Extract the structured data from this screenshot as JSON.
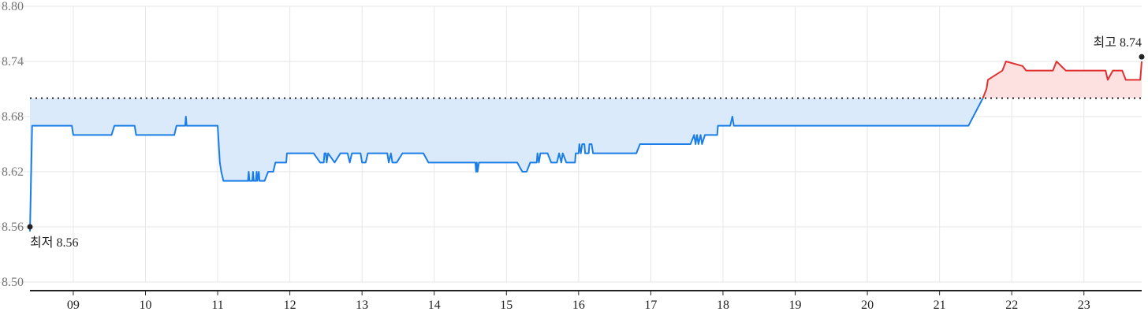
{
  "chart_data": {
    "type": "area",
    "title": "",
    "xlabel": "",
    "ylabel": "",
    "ylim": [
      8.5,
      8.8
    ],
    "xlim": [
      8.4,
      23.8
    ],
    "y_ticks": [
      "8.50",
      "8.56",
      "8.62",
      "8.68",
      "8.74",
      "8.80"
    ],
    "x_ticks": [
      {
        "value": 9,
        "label": "09"
      },
      {
        "value": 10,
        "label": "10"
      },
      {
        "value": 11,
        "label": "11"
      },
      {
        "value": 12,
        "label": "12"
      },
      {
        "value": 13,
        "label": "13"
      },
      {
        "value": 14,
        "label": "14"
      },
      {
        "value": 15,
        "label": "15"
      },
      {
        "value": 16,
        "label": "16"
      },
      {
        "value": 17,
        "label": "17"
      },
      {
        "value": 18,
        "label": "18"
      },
      {
        "value": 19,
        "label": "19"
      },
      {
        "value": 20,
        "label": "20"
      },
      {
        "value": 21,
        "label": "21"
      },
      {
        "value": 22,
        "label": "22"
      },
      {
        "value": 23,
        "label": "23"
      }
    ],
    "grid": true,
    "baseline": 8.7,
    "colors": {
      "below_line": "#1a7ee6",
      "below_fill": "#dbeafb",
      "above_line": "#e03131",
      "above_fill": "#fde1e1",
      "baseline": "#222222",
      "grid": "#e6e6e6",
      "axis": "#222222"
    },
    "annotations": {
      "min": {
        "label": "최저 8.56",
        "x": 8.4,
        "y": 8.56
      },
      "max": {
        "label": "최고 8.74",
        "x": 23.8,
        "y": 8.745
      }
    },
    "series": [
      {
        "points": [
          [
            8.4,
            8.555
          ],
          [
            8.43,
            8.67
          ],
          [
            8.98,
            8.67
          ],
          [
            9.0,
            8.66
          ],
          [
            9.53,
            8.66
          ],
          [
            9.57,
            8.67
          ],
          [
            9.85,
            8.67
          ],
          [
            9.87,
            8.66
          ],
          [
            10.4,
            8.66
          ],
          [
            10.43,
            8.67
          ],
          [
            10.55,
            8.67
          ],
          [
            10.56,
            8.68
          ],
          [
            10.57,
            8.67
          ],
          [
            11.0,
            8.67
          ],
          [
            11.03,
            8.63
          ],
          [
            11.05,
            8.62
          ],
          [
            11.08,
            8.61
          ],
          [
            11.42,
            8.61
          ],
          [
            11.43,
            8.62
          ],
          [
            11.44,
            8.61
          ],
          [
            11.48,
            8.61
          ],
          [
            11.49,
            8.62
          ],
          [
            11.5,
            8.61
          ],
          [
            11.53,
            8.61
          ],
          [
            11.54,
            8.62
          ],
          [
            11.55,
            8.61
          ],
          [
            11.57,
            8.62
          ],
          [
            11.58,
            8.61
          ],
          [
            11.65,
            8.61
          ],
          [
            11.7,
            8.62
          ],
          [
            11.77,
            8.62
          ],
          [
            11.8,
            8.63
          ],
          [
            11.95,
            8.63
          ],
          [
            11.96,
            8.64
          ],
          [
            12.33,
            8.64
          ],
          [
            12.42,
            8.63
          ],
          [
            12.47,
            8.63
          ],
          [
            12.48,
            8.64
          ],
          [
            12.5,
            8.64
          ],
          [
            12.51,
            8.63
          ],
          [
            12.53,
            8.64
          ],
          [
            12.62,
            8.63
          ],
          [
            12.7,
            8.64
          ],
          [
            12.8,
            8.64
          ],
          [
            12.83,
            8.63
          ],
          [
            12.86,
            8.64
          ],
          [
            12.98,
            8.64
          ],
          [
            13.0,
            8.63
          ],
          [
            13.05,
            8.63
          ],
          [
            13.08,
            8.64
          ],
          [
            13.35,
            8.64
          ],
          [
            13.37,
            8.63
          ],
          [
            13.4,
            8.64
          ],
          [
            13.42,
            8.63
          ],
          [
            13.48,
            8.63
          ],
          [
            13.56,
            8.64
          ],
          [
            13.85,
            8.64
          ],
          [
            13.92,
            8.63
          ],
          [
            14.57,
            8.63
          ],
          [
            14.58,
            8.62
          ],
          [
            14.59,
            8.63
          ],
          [
            14.6,
            8.62
          ],
          [
            14.62,
            8.63
          ],
          [
            15.15,
            8.63
          ],
          [
            15.22,
            8.62
          ],
          [
            15.28,
            8.62
          ],
          [
            15.33,
            8.63
          ],
          [
            15.42,
            8.63
          ],
          [
            15.43,
            8.64
          ],
          [
            15.45,
            8.63
          ],
          [
            15.47,
            8.64
          ],
          [
            15.57,
            8.64
          ],
          [
            15.62,
            8.63
          ],
          [
            15.7,
            8.63
          ],
          [
            15.73,
            8.64
          ],
          [
            15.76,
            8.63
          ],
          [
            15.78,
            8.64
          ],
          [
            15.83,
            8.63
          ],
          [
            15.95,
            8.63
          ],
          [
            15.96,
            8.64
          ],
          [
            16.0,
            8.64
          ],
          [
            16.01,
            8.65
          ],
          [
            16.03,
            8.64
          ],
          [
            16.05,
            8.65
          ],
          [
            16.08,
            8.65
          ],
          [
            16.09,
            8.64
          ],
          [
            16.14,
            8.64
          ],
          [
            16.15,
            8.65
          ],
          [
            16.18,
            8.65
          ],
          [
            16.2,
            8.64
          ],
          [
            16.8,
            8.64
          ],
          [
            16.85,
            8.65
          ],
          [
            17.55,
            8.65
          ],
          [
            17.6,
            8.66
          ],
          [
            17.62,
            8.65
          ],
          [
            17.64,
            8.66
          ],
          [
            17.66,
            8.65
          ],
          [
            17.69,
            8.66
          ],
          [
            17.71,
            8.65
          ],
          [
            17.75,
            8.66
          ],
          [
            17.92,
            8.66
          ],
          [
            17.93,
            8.67
          ],
          [
            18.1,
            8.67
          ],
          [
            18.13,
            8.68
          ],
          [
            18.15,
            8.67
          ],
          [
            21.4,
            8.67
          ],
          [
            21.6,
            8.7
          ]
        ]
      },
      {
        "points": [
          [
            21.6,
            8.7
          ],
          [
            21.65,
            8.71
          ],
          [
            21.67,
            8.72
          ],
          [
            21.87,
            8.73
          ],
          [
            21.92,
            8.74
          ],
          [
            22.15,
            8.735
          ],
          [
            22.2,
            8.73
          ],
          [
            22.57,
            8.73
          ],
          [
            22.62,
            8.74
          ],
          [
            22.75,
            8.73
          ],
          [
            23.3,
            8.73
          ],
          [
            23.33,
            8.72
          ],
          [
            23.4,
            8.73
          ],
          [
            23.53,
            8.73
          ],
          [
            23.58,
            8.72
          ],
          [
            23.78,
            8.72
          ],
          [
            23.8,
            8.74
          ]
        ]
      }
    ]
  }
}
